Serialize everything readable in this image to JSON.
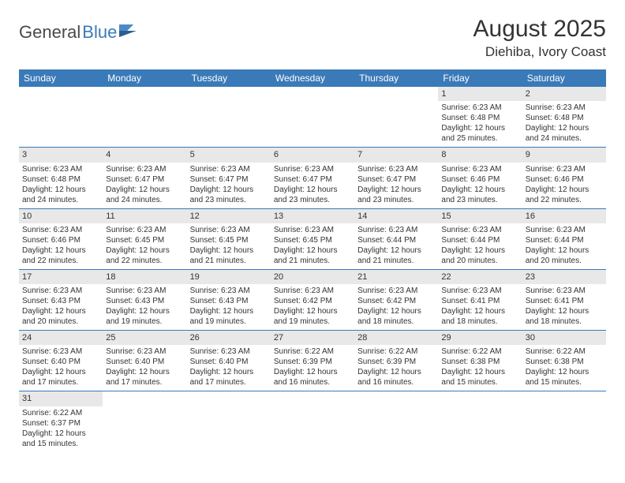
{
  "logo": {
    "general": "General",
    "blue": "Blue"
  },
  "title": {
    "month_year": "August 2025",
    "location": "Diehiba, Ivory Coast"
  },
  "colors": {
    "header_bg": "#3a7ab8",
    "daynum_bg": "#e8e8e8",
    "text": "#333333"
  },
  "day_headers": [
    "Sunday",
    "Monday",
    "Tuesday",
    "Wednesday",
    "Thursday",
    "Friday",
    "Saturday"
  ],
  "weeks": [
    [
      {
        "day": "",
        "sunrise": "",
        "sunset": "",
        "daylight": ""
      },
      {
        "day": "",
        "sunrise": "",
        "sunset": "",
        "daylight": ""
      },
      {
        "day": "",
        "sunrise": "",
        "sunset": "",
        "daylight": ""
      },
      {
        "day": "",
        "sunrise": "",
        "sunset": "",
        "daylight": ""
      },
      {
        "day": "",
        "sunrise": "",
        "sunset": "",
        "daylight": ""
      },
      {
        "day": "1",
        "sunrise": "Sunrise: 6:23 AM",
        "sunset": "Sunset: 6:48 PM",
        "daylight": "Daylight: 12 hours and 25 minutes."
      },
      {
        "day": "2",
        "sunrise": "Sunrise: 6:23 AM",
        "sunset": "Sunset: 6:48 PM",
        "daylight": "Daylight: 12 hours and 24 minutes."
      }
    ],
    [
      {
        "day": "3",
        "sunrise": "Sunrise: 6:23 AM",
        "sunset": "Sunset: 6:48 PM",
        "daylight": "Daylight: 12 hours and 24 minutes."
      },
      {
        "day": "4",
        "sunrise": "Sunrise: 6:23 AM",
        "sunset": "Sunset: 6:47 PM",
        "daylight": "Daylight: 12 hours and 24 minutes."
      },
      {
        "day": "5",
        "sunrise": "Sunrise: 6:23 AM",
        "sunset": "Sunset: 6:47 PM",
        "daylight": "Daylight: 12 hours and 23 minutes."
      },
      {
        "day": "6",
        "sunrise": "Sunrise: 6:23 AM",
        "sunset": "Sunset: 6:47 PM",
        "daylight": "Daylight: 12 hours and 23 minutes."
      },
      {
        "day": "7",
        "sunrise": "Sunrise: 6:23 AM",
        "sunset": "Sunset: 6:47 PM",
        "daylight": "Daylight: 12 hours and 23 minutes."
      },
      {
        "day": "8",
        "sunrise": "Sunrise: 6:23 AM",
        "sunset": "Sunset: 6:46 PM",
        "daylight": "Daylight: 12 hours and 23 minutes."
      },
      {
        "day": "9",
        "sunrise": "Sunrise: 6:23 AM",
        "sunset": "Sunset: 6:46 PM",
        "daylight": "Daylight: 12 hours and 22 minutes."
      }
    ],
    [
      {
        "day": "10",
        "sunrise": "Sunrise: 6:23 AM",
        "sunset": "Sunset: 6:46 PM",
        "daylight": "Daylight: 12 hours and 22 minutes."
      },
      {
        "day": "11",
        "sunrise": "Sunrise: 6:23 AM",
        "sunset": "Sunset: 6:45 PM",
        "daylight": "Daylight: 12 hours and 22 minutes."
      },
      {
        "day": "12",
        "sunrise": "Sunrise: 6:23 AM",
        "sunset": "Sunset: 6:45 PM",
        "daylight": "Daylight: 12 hours and 21 minutes."
      },
      {
        "day": "13",
        "sunrise": "Sunrise: 6:23 AM",
        "sunset": "Sunset: 6:45 PM",
        "daylight": "Daylight: 12 hours and 21 minutes."
      },
      {
        "day": "14",
        "sunrise": "Sunrise: 6:23 AM",
        "sunset": "Sunset: 6:44 PM",
        "daylight": "Daylight: 12 hours and 21 minutes."
      },
      {
        "day": "15",
        "sunrise": "Sunrise: 6:23 AM",
        "sunset": "Sunset: 6:44 PM",
        "daylight": "Daylight: 12 hours and 20 minutes."
      },
      {
        "day": "16",
        "sunrise": "Sunrise: 6:23 AM",
        "sunset": "Sunset: 6:44 PM",
        "daylight": "Daylight: 12 hours and 20 minutes."
      }
    ],
    [
      {
        "day": "17",
        "sunrise": "Sunrise: 6:23 AM",
        "sunset": "Sunset: 6:43 PM",
        "daylight": "Daylight: 12 hours and 20 minutes."
      },
      {
        "day": "18",
        "sunrise": "Sunrise: 6:23 AM",
        "sunset": "Sunset: 6:43 PM",
        "daylight": "Daylight: 12 hours and 19 minutes."
      },
      {
        "day": "19",
        "sunrise": "Sunrise: 6:23 AM",
        "sunset": "Sunset: 6:43 PM",
        "daylight": "Daylight: 12 hours and 19 minutes."
      },
      {
        "day": "20",
        "sunrise": "Sunrise: 6:23 AM",
        "sunset": "Sunset: 6:42 PM",
        "daylight": "Daylight: 12 hours and 19 minutes."
      },
      {
        "day": "21",
        "sunrise": "Sunrise: 6:23 AM",
        "sunset": "Sunset: 6:42 PM",
        "daylight": "Daylight: 12 hours and 18 minutes."
      },
      {
        "day": "22",
        "sunrise": "Sunrise: 6:23 AM",
        "sunset": "Sunset: 6:41 PM",
        "daylight": "Daylight: 12 hours and 18 minutes."
      },
      {
        "day": "23",
        "sunrise": "Sunrise: 6:23 AM",
        "sunset": "Sunset: 6:41 PM",
        "daylight": "Daylight: 12 hours and 18 minutes."
      }
    ],
    [
      {
        "day": "24",
        "sunrise": "Sunrise: 6:23 AM",
        "sunset": "Sunset: 6:40 PM",
        "daylight": "Daylight: 12 hours and 17 minutes."
      },
      {
        "day": "25",
        "sunrise": "Sunrise: 6:23 AM",
        "sunset": "Sunset: 6:40 PM",
        "daylight": "Daylight: 12 hours and 17 minutes."
      },
      {
        "day": "26",
        "sunrise": "Sunrise: 6:23 AM",
        "sunset": "Sunset: 6:40 PM",
        "daylight": "Daylight: 12 hours and 17 minutes."
      },
      {
        "day": "27",
        "sunrise": "Sunrise: 6:22 AM",
        "sunset": "Sunset: 6:39 PM",
        "daylight": "Daylight: 12 hours and 16 minutes."
      },
      {
        "day": "28",
        "sunrise": "Sunrise: 6:22 AM",
        "sunset": "Sunset: 6:39 PM",
        "daylight": "Daylight: 12 hours and 16 minutes."
      },
      {
        "day": "29",
        "sunrise": "Sunrise: 6:22 AM",
        "sunset": "Sunset: 6:38 PM",
        "daylight": "Daylight: 12 hours and 15 minutes."
      },
      {
        "day": "30",
        "sunrise": "Sunrise: 6:22 AM",
        "sunset": "Sunset: 6:38 PM",
        "daylight": "Daylight: 12 hours and 15 minutes."
      }
    ],
    [
      {
        "day": "31",
        "sunrise": "Sunrise: 6:22 AM",
        "sunset": "Sunset: 6:37 PM",
        "daylight": "Daylight: 12 hours and 15 minutes."
      },
      {
        "day": "",
        "sunrise": "",
        "sunset": "",
        "daylight": ""
      },
      {
        "day": "",
        "sunrise": "",
        "sunset": "",
        "daylight": ""
      },
      {
        "day": "",
        "sunrise": "",
        "sunset": "",
        "daylight": ""
      },
      {
        "day": "",
        "sunrise": "",
        "sunset": "",
        "daylight": ""
      },
      {
        "day": "",
        "sunrise": "",
        "sunset": "",
        "daylight": ""
      },
      {
        "day": "",
        "sunrise": "",
        "sunset": "",
        "daylight": ""
      }
    ]
  ]
}
